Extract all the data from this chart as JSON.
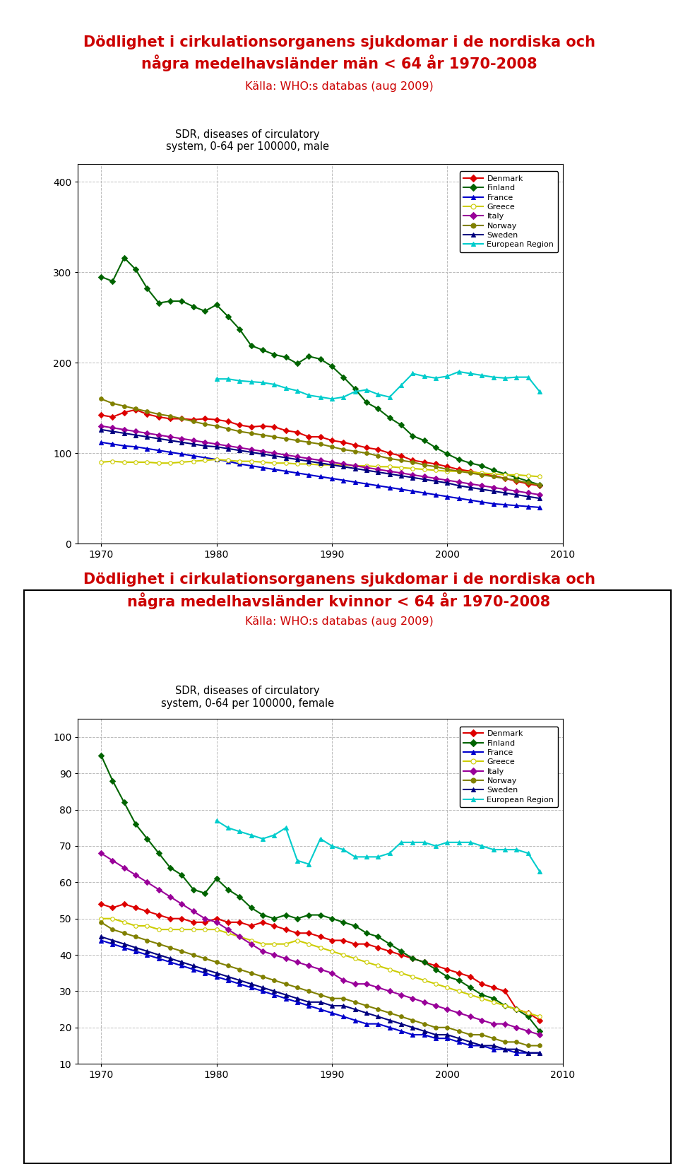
{
  "title1_line1": "Dödlighet i cirkulationsorganens sjukdomar i de nordiska och",
  "title1_line2": "några medelhavsländer män < 64 år 1970-2008",
  "title2_line1": "Dödlighet i cirkulationsorganens sjukdomar i de nordiska och",
  "title2_line2": "några medelhavsländer kvinnor < 64 år 1970-2008",
  "subtitle": "Källa: WHO:s databas (aug 2009)",
  "ylabel1": "SDR, diseases of circulatory\nsystem, 0-64 per 100000, male",
  "ylabel2": "SDR, diseases of circulatory\nsystem, 0-64 per 100000, female",
  "title_color": "#cc0000",
  "subtitle_color": "#cc0000",
  "years": [
    1970,
    1971,
    1972,
    1973,
    1974,
    1975,
    1976,
    1977,
    1978,
    1979,
    1980,
    1981,
    1982,
    1983,
    1984,
    1985,
    1986,
    1987,
    1988,
    1989,
    1990,
    1991,
    1992,
    1993,
    1994,
    1995,
    1996,
    1997,
    1998,
    1999,
    2000,
    2001,
    2002,
    2003,
    2004,
    2005,
    2006,
    2007,
    2008
  ],
  "male": {
    "Denmark": [
      142,
      140,
      145,
      148,
      143,
      140,
      138,
      138,
      137,
      138,
      137,
      135,
      131,
      129,
      130,
      129,
      125,
      123,
      118,
      118,
      114,
      112,
      109,
      106,
      104,
      100,
      97,
      92,
      90,
      88,
      85,
      82,
      80,
      77,
      75,
      72,
      69,
      66,
      64
    ],
    "Finland": [
      295,
      290,
      316,
      303,
      282,
      266,
      268,
      268,
      262,
      257,
      264,
      251,
      237,
      219,
      214,
      209,
      206,
      199,
      207,
      204,
      196,
      184,
      171,
      156,
      149,
      139,
      131,
      119,
      114,
      106,
      99,
      93,
      89,
      86,
      81,
      77,
      73,
      69,
      65
    ],
    "France": [
      112,
      110,
      108,
      107,
      105,
      103,
      101,
      99,
      97,
      95,
      93,
      91,
      88,
      86,
      84,
      82,
      80,
      78,
      76,
      74,
      72,
      70,
      68,
      66,
      64,
      62,
      60,
      58,
      56,
      54,
      52,
      50,
      48,
      46,
      44,
      43,
      42,
      41,
      40
    ],
    "Greece": [
      90,
      91,
      90,
      90,
      90,
      89,
      89,
      90,
      91,
      92,
      93,
      92,
      91,
      91,
      90,
      89,
      89,
      88,
      88,
      87,
      87,
      87,
      86,
      86,
      85,
      85,
      84,
      83,
      82,
      81,
      80,
      80,
      79,
      78,
      77,
      76,
      76,
      75,
      74
    ],
    "Italy": [
      130,
      128,
      126,
      124,
      122,
      120,
      118,
      116,
      114,
      112,
      110,
      108,
      106,
      104,
      102,
      100,
      98,
      96,
      94,
      92,
      90,
      88,
      86,
      84,
      82,
      80,
      78,
      76,
      74,
      72,
      70,
      68,
      66,
      64,
      62,
      60,
      58,
      56,
      54
    ],
    "Norway": [
      160,
      155,
      152,
      149,
      146,
      143,
      141,
      138,
      135,
      132,
      130,
      127,
      124,
      122,
      120,
      118,
      116,
      114,
      112,
      110,
      107,
      104,
      102,
      100,
      97,
      94,
      92,
      90,
      87,
      85,
      82,
      80,
      78,
      76,
      74,
      72,
      70,
      67,
      65
    ],
    "Sweden": [
      126,
      124,
      122,
      120,
      118,
      116,
      114,
      112,
      110,
      108,
      107,
      105,
      103,
      101,
      99,
      97,
      95,
      93,
      91,
      89,
      87,
      85,
      83,
      81,
      79,
      77,
      75,
      73,
      71,
      69,
      67,
      64,
      62,
      60,
      58,
      56,
      54,
      52,
      50
    ],
    "European Region": [
      null,
      null,
      null,
      null,
      null,
      null,
      null,
      null,
      null,
      null,
      182,
      182,
      180,
      179,
      178,
      176,
      172,
      169,
      164,
      162,
      160,
      162,
      168,
      170,
      165,
      162,
      175,
      188,
      185,
      183,
      185,
      190,
      188,
      186,
      184,
      183,
      184,
      184,
      168
    ]
  },
  "female": {
    "Denmark": [
      54,
      53,
      54,
      53,
      52,
      51,
      50,
      50,
      49,
      49,
      50,
      49,
      49,
      48,
      49,
      48,
      47,
      46,
      46,
      45,
      44,
      44,
      43,
      43,
      42,
      41,
      40,
      39,
      38,
      37,
      36,
      35,
      34,
      32,
      31,
      30,
      25,
      24,
      22
    ],
    "Finland": [
      95,
      88,
      82,
      76,
      72,
      68,
      64,
      62,
      58,
      57,
      61,
      58,
      56,
      53,
      51,
      50,
      51,
      50,
      51,
      51,
      50,
      49,
      48,
      46,
      45,
      43,
      41,
      39,
      38,
      36,
      34,
      33,
      31,
      29,
      28,
      26,
      25,
      23,
      19
    ],
    "France": [
      44,
      43,
      42,
      41,
      40,
      39,
      38,
      37,
      36,
      35,
      34,
      33,
      32,
      31,
      30,
      29,
      28,
      27,
      26,
      25,
      24,
      23,
      22,
      21,
      21,
      20,
      19,
      18,
      18,
      17,
      17,
      16,
      15,
      15,
      14,
      14,
      13,
      13,
      13
    ],
    "Greece": [
      50,
      50,
      49,
      48,
      48,
      47,
      47,
      47,
      47,
      47,
      47,
      46,
      45,
      44,
      43,
      43,
      43,
      44,
      43,
      42,
      41,
      40,
      39,
      38,
      37,
      36,
      35,
      34,
      33,
      32,
      31,
      30,
      29,
      28,
      27,
      26,
      25,
      24,
      23
    ],
    "Italy": [
      68,
      66,
      64,
      62,
      60,
      58,
      56,
      54,
      52,
      50,
      49,
      47,
      45,
      43,
      41,
      40,
      39,
      38,
      37,
      36,
      35,
      33,
      32,
      32,
      31,
      30,
      29,
      28,
      27,
      26,
      25,
      24,
      23,
      22,
      21,
      21,
      20,
      19,
      18
    ],
    "Norway": [
      49,
      47,
      46,
      45,
      44,
      43,
      42,
      41,
      40,
      39,
      38,
      37,
      36,
      35,
      34,
      33,
      32,
      31,
      30,
      29,
      28,
      28,
      27,
      26,
      25,
      24,
      23,
      22,
      21,
      20,
      20,
      19,
      18,
      18,
      17,
      16,
      16,
      15,
      15
    ],
    "Sweden": [
      45,
      44,
      43,
      42,
      41,
      40,
      39,
      38,
      37,
      36,
      35,
      34,
      33,
      32,
      31,
      30,
      29,
      28,
      27,
      27,
      26,
      26,
      25,
      24,
      23,
      22,
      21,
      20,
      19,
      18,
      18,
      17,
      16,
      15,
      15,
      14,
      14,
      13,
      13
    ],
    "European Region": [
      null,
      null,
      null,
      null,
      null,
      null,
      null,
      null,
      null,
      null,
      77,
      75,
      74,
      73,
      72,
      73,
      75,
      66,
      65,
      72,
      70,
      69,
      67,
      67,
      67,
      68,
      71,
      71,
      71,
      70,
      71,
      71,
      71,
      70,
      69,
      69,
      69,
      68,
      63
    ]
  },
  "colors": {
    "Denmark": "#dd0000",
    "Finland": "#006400",
    "France": "#0000cc",
    "Greece": "#cccc00",
    "Italy": "#990099",
    "Norway": "#808000",
    "Sweden": "#000080",
    "European Region": "#00cccc"
  },
  "markers": {
    "Denmark": "D",
    "Finland": "D",
    "France": "^",
    "Greece": "o",
    "Italy": "D",
    "Norway": "o",
    "Sweden": "^",
    "European Region": "^"
  }
}
